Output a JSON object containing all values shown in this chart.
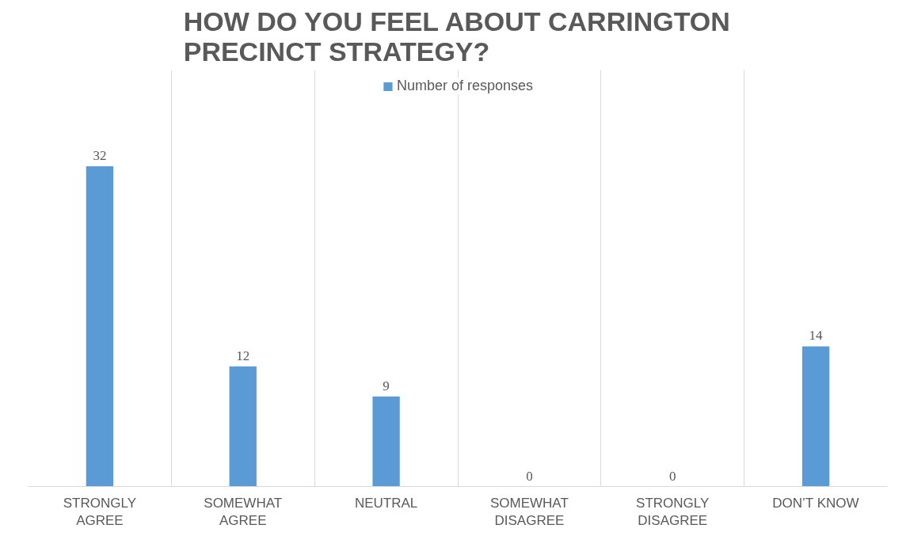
{
  "chart_data": {
    "type": "bar",
    "title": "HOW DO YOU FEEL ABOUT CARRINGTON PRECINCT STRATEGY?",
    "categories": [
      "STRONGLY\nAGREE",
      "SOMEWHAT\nAGREE",
      "NEUTRAL",
      "SOMEWHAT\nDISAGREE",
      "STRONGLY\nDISAGREE",
      "DON’T KNOW"
    ],
    "series": [
      {
        "name": "Number of responses",
        "color": "#5b9bd5",
        "values": [
          32,
          12,
          9,
          0,
          0,
          14
        ]
      }
    ],
    "data_labels": true,
    "legend": "top",
    "grid": "x"
  }
}
